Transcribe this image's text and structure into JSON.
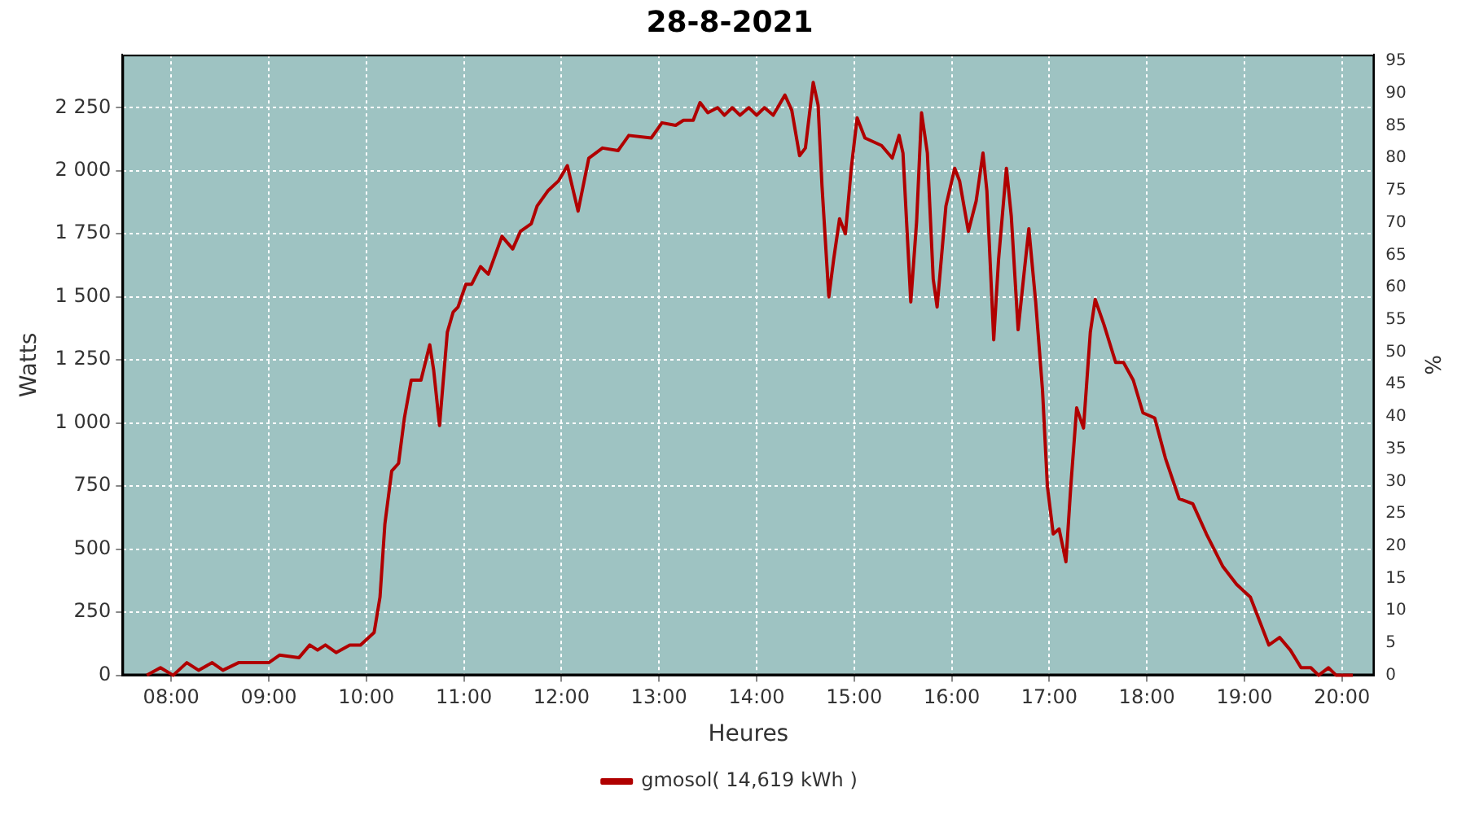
{
  "chart_data": {
    "type": "line",
    "title": "28-8-2021",
    "xlabel": "Heures",
    "ylabel": "Watts",
    "y2label": "%",
    "x": [
      7.75,
      7.89,
      8.02,
      8.16,
      8.28,
      8.42,
      8.53,
      8.69,
      9.0,
      9.11,
      9.31,
      9.42,
      9.5,
      9.58,
      9.69,
      9.83,
      9.94,
      10.08,
      10.14,
      10.19,
      10.26,
      10.33,
      10.39,
      10.46,
      10.56,
      10.65,
      10.69,
      10.75,
      10.83,
      10.89,
      10.94,
      11.02,
      11.08,
      11.17,
      11.25,
      11.39,
      11.5,
      11.58,
      11.69,
      11.75,
      11.86,
      11.97,
      12.06,
      12.17,
      12.28,
      12.42,
      12.58,
      12.69,
      12.92,
      13.03,
      13.17,
      13.25,
      13.35,
      13.42,
      13.5,
      13.6,
      13.67,
      13.75,
      13.83,
      13.92,
      14.0,
      14.08,
      14.17,
      14.29,
      14.36,
      14.44,
      14.5,
      14.58,
      14.63,
      14.67,
      14.74,
      14.79,
      14.85,
      14.91,
      14.97,
      15.03,
      15.11,
      15.28,
      15.39,
      15.46,
      15.5,
      15.58,
      15.64,
      15.69,
      15.75,
      15.81,
      15.85,
      15.94,
      16.03,
      16.08,
      16.17,
      16.25,
      16.32,
      16.36,
      16.43,
      16.48,
      16.56,
      16.61,
      16.68,
      16.74,
      16.79,
      16.86,
      16.93,
      16.98,
      17.04,
      17.1,
      17.17,
      17.22,
      17.28,
      17.35,
      17.42,
      17.47,
      17.56,
      17.68,
      17.76,
      17.86,
      17.96,
      18.08,
      18.19,
      18.33,
      18.47,
      18.61,
      18.78,
      18.92,
      19.06,
      19.25,
      19.36,
      19.47,
      19.58,
      19.68,
      19.76,
      19.86,
      19.94,
      20.11
    ],
    "series": [
      {
        "name": "gmosol( 14,619 kWh )",
        "color": "#b00000",
        "values": [
          0,
          30,
          0,
          50,
          20,
          50,
          20,
          50,
          50,
          80,
          70,
          120,
          100,
          120,
          90,
          120,
          120,
          170,
          310,
          600,
          810,
          840,
          1020,
          1170,
          1170,
          1310,
          1210,
          990,
          1360,
          1440,
          1460,
          1550,
          1550,
          1620,
          1590,
          1740,
          1690,
          1760,
          1790,
          1860,
          1920,
          1960,
          2020,
          1840,
          2050,
          2090,
          2080,
          2140,
          2130,
          2190,
          2180,
          2200,
          2200,
          2270,
          2230,
          2250,
          2220,
          2250,
          2220,
          2250,
          2220,
          2250,
          2220,
          2300,
          2240,
          2060,
          2090,
          2350,
          2260,
          1940,
          1500,
          1650,
          1810,
          1750,
          2010,
          2210,
          2130,
          2100,
          2050,
          2140,
          2070,
          1480,
          1800,
          2230,
          2070,
          1570,
          1460,
          1860,
          2010,
          1960,
          1760,
          1880,
          2070,
          1920,
          1330,
          1650,
          2010,
          1820,
          1370,
          1590,
          1770,
          1480,
          1130,
          750,
          560,
          580,
          450,
          750,
          1060,
          980,
          1360,
          1490,
          1390,
          1240,
          1240,
          1170,
          1040,
          1020,
          860,
          700,
          680,
          560,
          430,
          360,
          310,
          120,
          150,
          100,
          30,
          30,
          0,
          30,
          0,
          0
        ]
      }
    ],
    "xlim": [
      7.5,
      20.33
    ],
    "xticks": [
      {
        "value": 8,
        "label": "08:00"
      },
      {
        "value": 9,
        "label": "09:00"
      },
      {
        "value": 10,
        "label": "10:00"
      },
      {
        "value": 11,
        "label": "11:00"
      },
      {
        "value": 12,
        "label": "12:00"
      },
      {
        "value": 13,
        "label": "13:00"
      },
      {
        "value": 14,
        "label": "14:00"
      },
      {
        "value": 15,
        "label": "15:00"
      },
      {
        "value": 16,
        "label": "16:00"
      },
      {
        "value": 17,
        "label": "17:00"
      },
      {
        "value": 18,
        "label": "18:00"
      },
      {
        "value": 19,
        "label": "19:00"
      },
      {
        "value": 20,
        "label": "20:00"
      }
    ],
    "ylim": [
      0,
      2460
    ],
    "yticks": [
      0,
      250,
      500,
      750,
      {
        "value": 1000,
        "label": "1 000"
      },
      {
        "value": 1250,
        "label": "1 250"
      },
      {
        "value": 1500,
        "label": "1 500"
      },
      {
        "value": 1750,
        "label": "1 750"
      },
      {
        "value": 2000,
        "label": "2 000"
      },
      {
        "value": 2250,
        "label": "2 250"
      }
    ],
    "y2lim": [
      0,
      96
    ],
    "y2ticks": [
      0,
      5,
      10,
      15,
      20,
      25,
      30,
      35,
      40,
      45,
      50,
      55,
      60,
      65,
      70,
      75,
      80,
      85,
      90,
      95
    ],
    "grid": true,
    "legend": "bottom",
    "marker": "none",
    "line_style": "solid"
  }
}
